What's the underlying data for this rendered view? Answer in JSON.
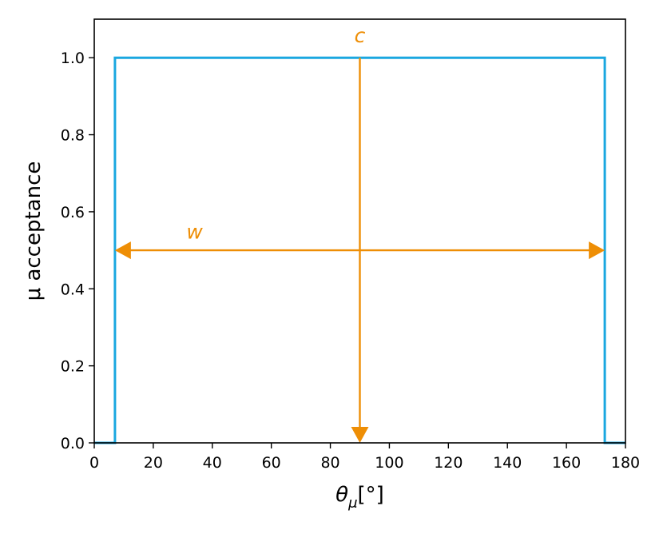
{
  "chart_data": {
    "type": "line",
    "ylabel": "μ acceptance",
    "xlabel": {
      "symbol": "θ",
      "subscript": "μ",
      "unit": "[°]"
    },
    "xlim": [
      0,
      180
    ],
    "ylim": [
      0,
      1.1
    ],
    "x_ticks": [
      0,
      20,
      40,
      60,
      80,
      100,
      120,
      140,
      160,
      180
    ],
    "y_ticks": [
      0.0,
      0.2,
      0.4,
      0.6,
      0.8,
      1.0
    ],
    "x_tick_labels": [
      "0",
      "20",
      "40",
      "60",
      "80",
      "100",
      "120",
      "140",
      "160",
      "180"
    ],
    "y_tick_labels": [
      "0.0",
      "0.2",
      "0.4",
      "0.6",
      "0.8",
      "1.0"
    ],
    "grid": false,
    "series": [
      {
        "x": [
          0,
          7,
          7,
          173,
          173,
          180
        ],
        "y": [
          0,
          0,
          1,
          1,
          0,
          0
        ],
        "color": "#1aa7e0"
      }
    ],
    "annotations": [
      {
        "label": "c",
        "kind": "vertical-arrow",
        "x": 90,
        "y_from": 1.0,
        "y_to": 0.0,
        "label_x": 90,
        "label_y": 1.04,
        "color": "#ee8e05"
      },
      {
        "label": "w",
        "kind": "double-arrow",
        "y": 0.5,
        "x_from": 7,
        "x_to": 173,
        "label_x": 34,
        "label_y": 0.53,
        "color": "#ee8e05"
      }
    ]
  }
}
